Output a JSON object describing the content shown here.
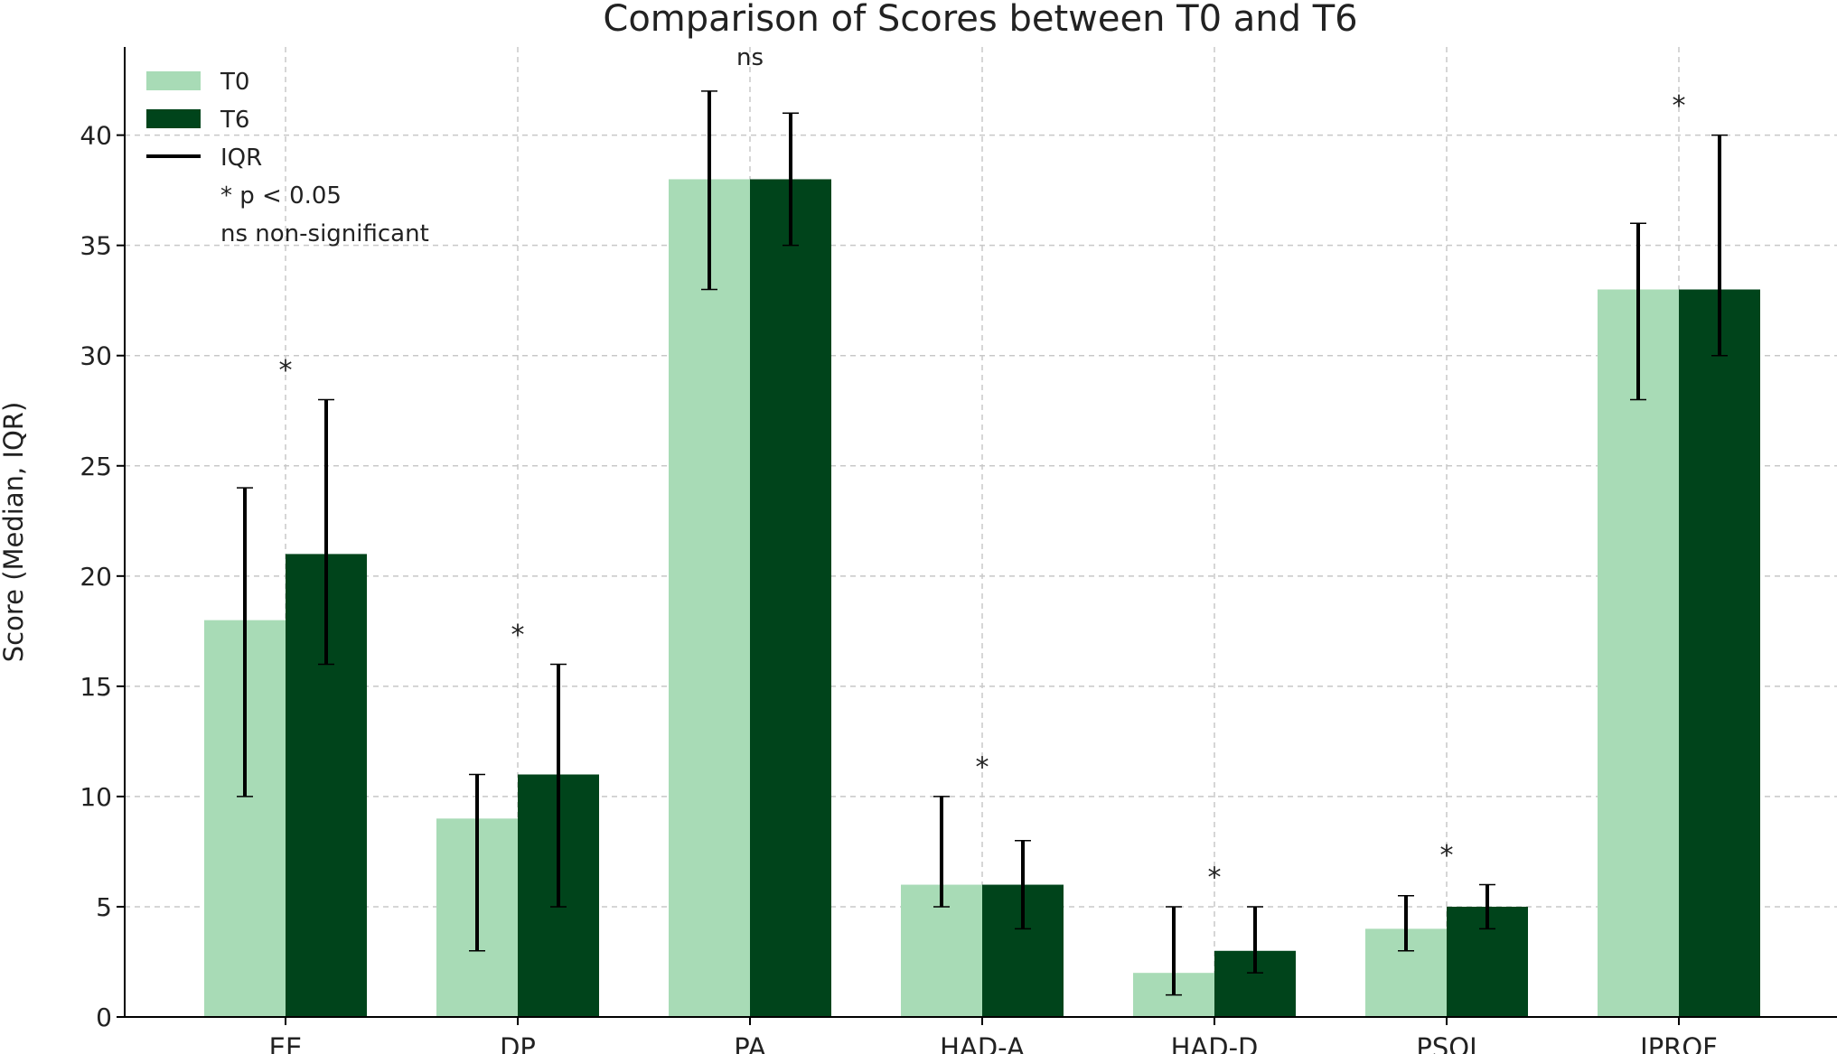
{
  "chart_data": {
    "type": "bar",
    "title": "Comparison of Scores between T0 and T6",
    "xlabel": "",
    "ylabel": "Score (Median, IQR)",
    "ylim": [
      0,
      44
    ],
    "yticks": [
      0,
      5,
      10,
      15,
      20,
      25,
      30,
      35,
      40
    ],
    "grid": true,
    "legend_position": "top-left",
    "categories": [
      "EE",
      "DP",
      "PA",
      "HAD-A",
      "HAD-D",
      "PSQI",
      "IPROF"
    ],
    "series": [
      {
        "name": "T0",
        "color": "#a8dbb6",
        "values": [
          18,
          9,
          38,
          6,
          2,
          4,
          33
        ],
        "iqr_low": [
          10,
          3,
          33,
          5,
          1,
          3,
          28
        ],
        "iqr_high": [
          24,
          11,
          42,
          10,
          5,
          5.5,
          36
        ]
      },
      {
        "name": "T6",
        "color": "#00441b",
        "values": [
          21,
          11,
          38,
          6,
          3,
          5,
          33
        ],
        "iqr_low": [
          16,
          5,
          35,
          4,
          2,
          4,
          30
        ],
        "iqr_high": [
          28,
          16,
          41,
          8,
          5,
          6,
          40
        ]
      }
    ],
    "significance": [
      {
        "category": "EE",
        "label": "*",
        "y": 29.5
      },
      {
        "category": "DP",
        "label": "*",
        "y": 17.5
      },
      {
        "category": "PA",
        "label": "ns",
        "y": 43.5
      },
      {
        "category": "HAD-A",
        "label": "*",
        "y": 11.5
      },
      {
        "category": "HAD-D",
        "label": "*",
        "y": 6.5
      },
      {
        "category": "PSQI",
        "label": "*",
        "y": 7.5
      },
      {
        "category": "IPROF",
        "label": "*",
        "y": 41.5
      }
    ],
    "legend": {
      "entries": [
        "T0",
        "T6",
        "IQR"
      ],
      "notes": [
        "* p < 0.05",
        "ns non-significant"
      ]
    }
  },
  "colors": {
    "axis": "#000000",
    "grid": "#c8c8c8",
    "errorbar": "#000000",
    "text": "#222222"
  }
}
